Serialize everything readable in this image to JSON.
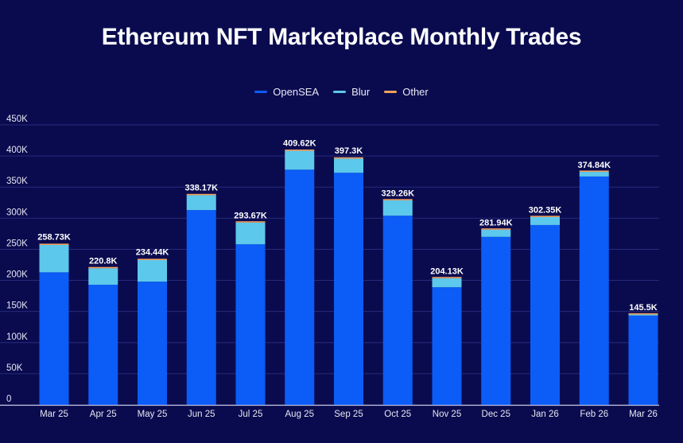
{
  "colors": {
    "background": "#0a0b4f",
    "OpenSEA": "#0c5cf7",
    "Blur": "#5cc8ec",
    "Other": "#f5a25d",
    "gridline": "#262a78",
    "text": "#ffffff"
  },
  "chart_data": {
    "type": "bar",
    "stacked": true,
    "title": "Ethereum NFT Marketplace Monthly Trades",
    "xlabel": "",
    "ylabel": "",
    "ylim": [
      0,
      450000
    ],
    "yticks": [
      0,
      50000,
      100000,
      150000,
      200000,
      250000,
      300000,
      350000,
      400000,
      450000
    ],
    "ytick_labels": [
      "0",
      "50K",
      "100K",
      "150K",
      "200K",
      "250K",
      "300K",
      "350K",
      "400K",
      "450K"
    ],
    "grid": true,
    "legend_position": "top-center",
    "categories": [
      "Mar 25",
      "Apr 25",
      "May 25",
      "Jun 25",
      "Jul 25",
      "Aug 25",
      "Sep 25",
      "Oct 25",
      "Nov 25",
      "Dec 25",
      "Jan 26",
      "Feb 26",
      "Mar 26"
    ],
    "series": [
      {
        "name": "OpenSEA",
        "values": [
          213000,
          193000,
          198000,
          313000,
          258000,
          378000,
          373000,
          304000,
          189000,
          270000,
          289000,
          367000,
          143500
        ]
      },
      {
        "name": "Blur",
        "values": [
          44000,
          26500,
          34700,
          24000,
          35000,
          30300,
          22800,
          24700,
          14500,
          11500,
          12800,
          7500,
          1700
        ]
      },
      {
        "name": "Other",
        "values": [
          1730,
          1300,
          1740,
          1170,
          670,
          1320,
          1500,
          560,
          630,
          440,
          550,
          340,
          300
        ]
      }
    ],
    "totals": [
      258730,
      220800,
      234440,
      338170,
      293670,
      409620,
      397300,
      329260,
      204130,
      281940,
      302350,
      374840,
      145500
    ],
    "total_labels": [
      "258.73K",
      "220.8K",
      "234.44K",
      "338.17K",
      "293.67K",
      "409.62K",
      "397.3K",
      "329.26K",
      "204.13K",
      "281.94K",
      "302.35K",
      "374.84K",
      "145.5K"
    ]
  }
}
